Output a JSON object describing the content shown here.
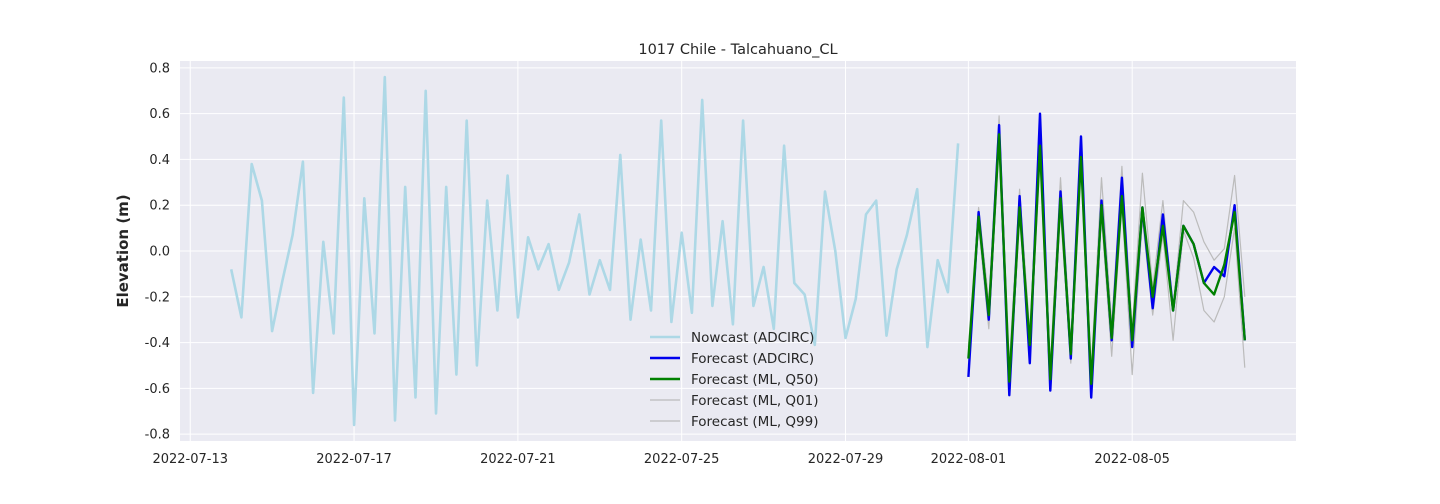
{
  "chart_data": {
    "type": "line",
    "title": "1017 Chile - Talcahuano_CL",
    "xlabel": "",
    "ylabel": "Elevation (m)",
    "x_axis": "date",
    "xlim": [
      "2022-07-12T18:00",
      "2022-08-09T00:00"
    ],
    "ylim": [
      -0.83,
      0.83
    ],
    "x_ticks": [
      "2022-07-13",
      "2022-07-17",
      "2022-07-21",
      "2022-07-25",
      "2022-07-29",
      "2022-08-01",
      "2022-08-05"
    ],
    "y_ticks": [
      -0.8,
      -0.6,
      -0.4,
      -0.2,
      0.0,
      0.2,
      0.4,
      0.6,
      0.8
    ],
    "grid": true,
    "legend_position": "lower center",
    "series": [
      {
        "name": "Nowcast (ADCIRC)",
        "color": "#add8e6",
        "start": "2022-07-14T00:00",
        "step_hours": 6,
        "values": [
          -0.08,
          -0.29,
          0.38,
          0.22,
          -0.35,
          -0.13,
          0.07,
          0.39,
          -0.62,
          0.04,
          -0.36,
          0.67,
          -0.76,
          0.23,
          -0.36,
          0.76,
          -0.74,
          0.28,
          -0.64,
          0.7,
          -0.71,
          0.28,
          -0.54,
          0.57,
          -0.5,
          0.22,
          -0.26,
          0.33,
          -0.29,
          0.06,
          -0.08,
          0.03,
          -0.17,
          -0.05,
          0.16,
          -0.19,
          -0.04,
          -0.17,
          0.42,
          -0.3,
          0.05,
          -0.26,
          0.57,
          -0.31,
          0.08,
          -0.27,
          0.66,
          -0.24,
          0.13,
          -0.32,
          0.57,
          -0.24,
          -0.07,
          -0.34,
          0.46,
          -0.14,
          -0.19,
          -0.41,
          0.26,
          0.0,
          -0.38,
          -0.21,
          0.16,
          0.22,
          -0.37,
          -0.08,
          0.07,
          0.27,
          -0.42,
          -0.04,
          -0.18,
          0.47
        ]
      },
      {
        "name": "Forecast (ADCIRC)",
        "color": "#0000ee",
        "start": "2022-08-01T00:00",
        "step_hours": 6,
        "values": [
          -0.55,
          0.17,
          -0.3,
          0.55,
          -0.63,
          0.24,
          -0.49,
          0.6,
          -0.61,
          0.26,
          -0.47,
          0.5,
          -0.64,
          0.22,
          -0.39,
          0.32,
          -0.42,
          0.19,
          -0.25,
          0.16,
          -0.26,
          0.11,
          0.03,
          -0.14,
          -0.07,
          -0.11,
          0.2,
          -0.39
        ]
      },
      {
        "name": "Forecast (ML, Q50)",
        "color": "#008000",
        "start": "2022-08-01T00:00",
        "step_hours": 6,
        "values": [
          -0.47,
          0.15,
          -0.28,
          0.51,
          -0.57,
          0.19,
          -0.41,
          0.46,
          -0.56,
          0.23,
          -0.45,
          0.41,
          -0.58,
          0.2,
          -0.38,
          0.24,
          -0.39,
          0.19,
          -0.2,
          0.11,
          -0.26,
          0.11,
          0.03,
          -0.14,
          -0.19,
          -0.06,
          0.17,
          -0.39
        ]
      },
      {
        "name": "Forecast (ML, Q01)",
        "color": "#bbbbbb",
        "start": "2022-08-01T00:00",
        "step_hours": 6,
        "values": [
          -0.5,
          0.11,
          -0.34,
          0.47,
          -0.62,
          0.15,
          -0.46,
          0.41,
          -0.6,
          0.17,
          -0.49,
          0.37,
          -0.62,
          0.15,
          -0.46,
          0.2,
          -0.54,
          0.14,
          -0.28,
          0.07,
          -0.39,
          0.09,
          -0.03,
          -0.26,
          -0.31,
          -0.2,
          0.1,
          -0.51
        ]
      },
      {
        "name": "Forecast (ML, Q99)",
        "color": "#bbbbbb",
        "start": "2022-08-01T00:00",
        "step_hours": 6,
        "values": [
          -0.42,
          0.19,
          -0.22,
          0.59,
          -0.5,
          0.27,
          -0.36,
          0.52,
          -0.5,
          0.32,
          -0.4,
          0.46,
          -0.52,
          0.32,
          -0.32,
          0.37,
          -0.34,
          0.34,
          -0.16,
          0.22,
          -0.25,
          0.22,
          0.17,
          0.04,
          -0.04,
          0.01,
          0.33,
          -0.2
        ]
      }
    ]
  }
}
